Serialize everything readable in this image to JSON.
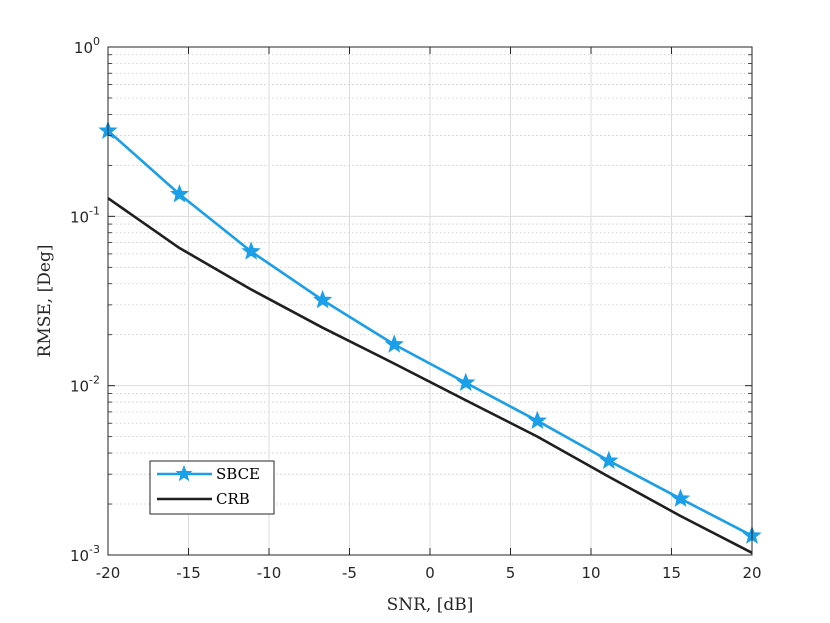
{
  "chart_data": {
    "type": "line",
    "title": "",
    "xlabel": "SNR, [dB]",
    "ylabel": "RMSE, [Deg]",
    "x_scale": "linear",
    "y_scale": "log",
    "xlim": [
      -20,
      20
    ],
    "ylim": [
      0.001,
      1
    ],
    "xticks": [
      -20,
      -15,
      -10,
      -5,
      0,
      5,
      10,
      15,
      20
    ],
    "xtick_labels": [
      "-20",
      "-15",
      "-10",
      "-5",
      "0",
      "5",
      "10",
      "15",
      "20"
    ],
    "yticks": [
      {
        "value": 0.001,
        "base": "10",
        "exp": "-3"
      },
      {
        "value": 0.01,
        "base": "10",
        "exp": "-2"
      },
      {
        "value": 0.1,
        "base": "10",
        "exp": "-1"
      },
      {
        "value": 1,
        "base": "10",
        "exp": "0"
      }
    ],
    "grid": true,
    "minor_grid": true,
    "legend_position": "bottom-left",
    "series": [
      {
        "name": "SBCE",
        "color": "#1a9fe8",
        "marker": "star",
        "x": [
          -20,
          -15.56,
          -11.11,
          -6.67,
          -2.22,
          2.22,
          6.67,
          11.11,
          15.56,
          20
        ],
        "y": [
          0.32,
          0.135,
          0.062,
          0.032,
          0.0175,
          0.0104,
          0.0062,
          0.0036,
          0.00215,
          0.0013
        ]
      },
      {
        "name": "CRB",
        "color": "#1f1f1f",
        "marker": "none",
        "x": [
          -20,
          -15.56,
          -11.11,
          -6.67,
          -2.22,
          2.22,
          6.67,
          11.11,
          15.56,
          20
        ],
        "y": [
          0.128,
          0.065,
          0.037,
          0.022,
          0.0135,
          0.0082,
          0.005,
          0.0029,
          0.0017,
          0.00103
        ]
      }
    ]
  }
}
